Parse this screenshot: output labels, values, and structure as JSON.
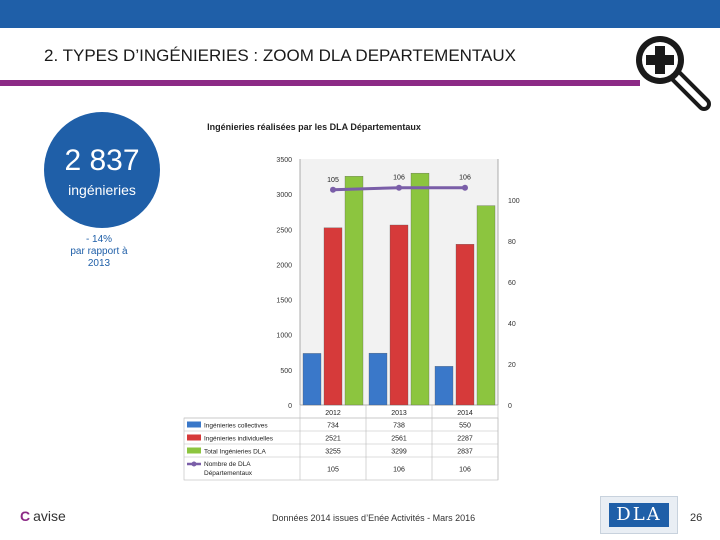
{
  "header": {
    "title": "2. TYPES D’INGÉNIERIES : ZOOM DLA DEPARTEMENTAUX"
  },
  "kpi": {
    "value": "2 837",
    "label": "ingénieries",
    "delta_line1": "- 14%",
    "delta_line2": "par rapport à",
    "delta_line3": "2013"
  },
  "chart_data": {
    "type": "bar",
    "title": "Ingénieries réalisées par les DLA Départementaux",
    "categories": [
      "2012",
      "2013",
      "2014"
    ],
    "ylim": [
      0,
      3500
    ],
    "y_ticks": [
      0,
      500,
      1000,
      1500,
      2000,
      2500,
      3000,
      3500
    ],
    "y2lim": [
      0,
      120
    ],
    "y2_ticks": [
      0,
      20,
      40,
      60,
      80,
      100
    ],
    "series": [
      {
        "name": "Ingénieries collectives",
        "values": [
          734,
          738,
          550
        ],
        "color": "#3a78c9"
      },
      {
        "name": "Ingénieries individuelles",
        "values": [
          2521,
          2561,
          2287
        ],
        "color": "#d63a3a"
      },
      {
        "name": "Total Ingénieries DLA",
        "values": [
          3255,
          3299,
          2837
        ],
        "color": "#8cc53f"
      }
    ],
    "line_series": {
      "name": "Nombre de DLA Départementaux",
      "values": [
        105,
        106,
        106
      ],
      "color": "#7a5ea8",
      "axis": "right"
    },
    "table": {
      "rows": [
        {
          "label": "Ingénieries collectives",
          "values": [
            "734",
            "738",
            "550"
          ]
        },
        {
          "label": "Ingénieries individuelles",
          "values": [
            "2521",
            "2561",
            "2287"
          ]
        },
        {
          "label": "Total Ingénieries DLA",
          "values": [
            "3255",
            "3299",
            "2837"
          ]
        },
        {
          "label_line1": "Nombre de DLA",
          "label_line2": "Départementaux",
          "values": [
            "105",
            "106",
            "106"
          ]
        }
      ]
    }
  },
  "footer": {
    "logo_mark": "C",
    "logo_text": "avise",
    "source": "Données 2014 issues d’Enée Activités - Mars 2016",
    "dla_logo": "DLA",
    "page": "26"
  }
}
